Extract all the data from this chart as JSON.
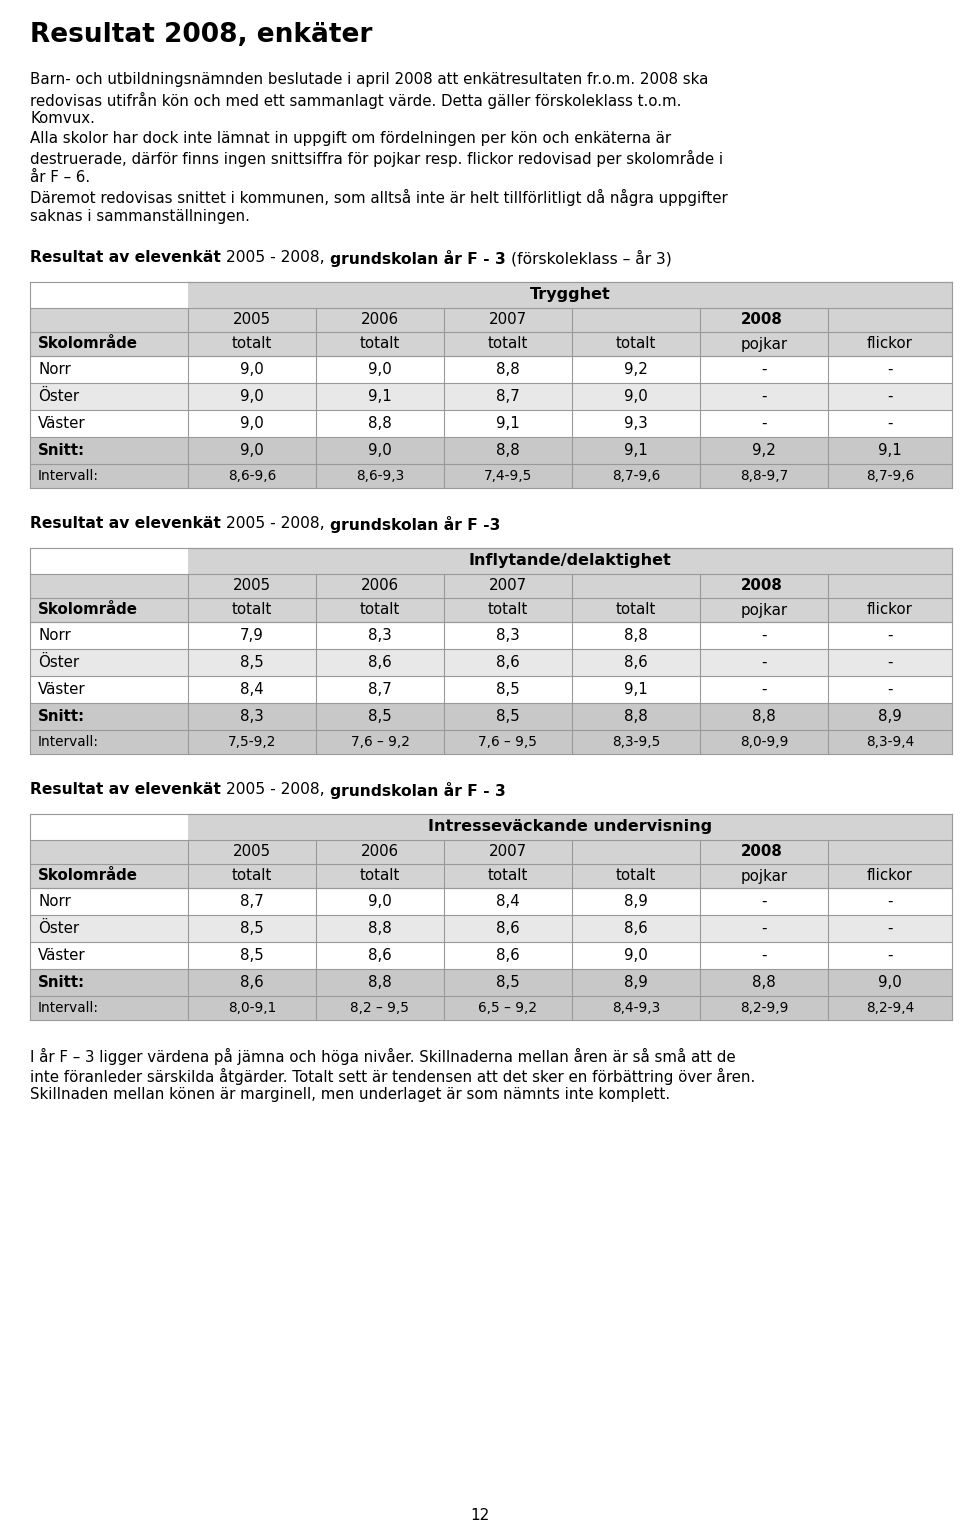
{
  "title": "Resultat 2008, enkäter",
  "bg_color": "#ffffff",
  "text_color": "#000000",
  "table_header_bg": "#d3d3d3",
  "table_row_bg_alt": "#e8e8e8",
  "table_row_bg_white": "#ffffff",
  "snitt_bg": "#c8c8c8",
  "intro_lines": [
    "Barn- och utbildningsnämnden beslutade i april 2008 att enkätresultaten fr.o.m. 2008 ska",
    "redovisas utifrån kön och med ett sammanlagt värde. Detta gäller förskoleklass t.o.m.",
    "Komvux.",
    "Alla skolor har dock inte lämnat in uppgift om fördelningen per kön och enkäterna är",
    "destruerade, därför finns ingen snittsiffra för pojkar resp. flickor redovisad per skolområde i",
    "år F – 6.",
    "Däremot redovisas snittet i kommunen, som alltså inte är helt tillförlitligt då några uppgifter",
    "saknas i sammanställningen."
  ],
  "section1_parts": [
    [
      "Resultat av elevenkät ",
      true
    ],
    [
      "2005 - 2008, ",
      false
    ],
    [
      "grundskolan år F - 3 ",
      true
    ],
    [
      "(förskoleklass – år 3)",
      false
    ]
  ],
  "section2_parts": [
    [
      "Resultat av elevenkät ",
      true
    ],
    [
      "2005 - 2008, ",
      false
    ],
    [
      "grundskolan år F -3",
      true
    ]
  ],
  "section3_parts": [
    [
      "Resultat av elevenkät ",
      true
    ],
    [
      "2005 - 2008, ",
      false
    ],
    [
      "grundskolan år F - 3",
      true
    ]
  ],
  "footer_lines": [
    "I år F – 3 ligger värdena på jämna och höga nivåer. Skillnaderna mellan åren är så små att de",
    "inte föranleder särskilda åtgärder. Totalt sett är tendensen att det sker en förbättring över åren.",
    "Skillnaden mellan könen är marginell, men underlaget är som nämnts inte komplett."
  ],
  "footer_page": "12",
  "table1_header": "Trygghet",
  "table2_header": "Inflytande/delaktighet",
  "table3_header": "Intresseväckande undervisning",
  "table1_rows": [
    [
      "Norr",
      "9,0",
      "9,0",
      "8,8",
      "9,2",
      "-",
      "-"
    ],
    [
      "Öster",
      "9,0",
      "9,1",
      "8,7",
      "9,0",
      "-",
      "-"
    ],
    [
      "Väster",
      "9,0",
      "8,8",
      "9,1",
      "9,3",
      "-",
      "-"
    ]
  ],
  "table1_snitt": [
    "Snitt:",
    "9,0",
    "9,0",
    "8,8",
    "9,1",
    "9,2",
    "9,1"
  ],
  "table1_intervall": [
    "Intervall:",
    "8,6-9,6",
    "8,6-9,3",
    "7,4-9,5",
    "8,7-9,6",
    "8,8-9,7",
    "8,7-9,6"
  ],
  "table2_rows": [
    [
      "Norr",
      "7,9",
      "8,3",
      "8,3",
      "8,8",
      "-",
      "-"
    ],
    [
      "Öster",
      "8,5",
      "8,6",
      "8,6",
      "8,6",
      "-",
      "-"
    ],
    [
      "Väster",
      "8,4",
      "8,7",
      "8,5",
      "9,1",
      "-",
      "-"
    ]
  ],
  "table2_snitt": [
    "Snitt:",
    "8,3",
    "8,5",
    "8,5",
    "8,8",
    "8,8",
    "8,9"
  ],
  "table2_intervall": [
    "Intervall:",
    "7,5-9,2",
    "7,6 – 9,2",
    "7,6 – 9,5",
    "8,3-9,5",
    "8,0-9,9",
    "8,3-9,4"
  ],
  "table3_rows": [
    [
      "Norr",
      "8,7",
      "9,0",
      "8,4",
      "8,9",
      "-",
      "-"
    ],
    [
      "Öster",
      "8,5",
      "8,8",
      "8,6",
      "8,6",
      "-",
      "-"
    ],
    [
      "Väster",
      "8,5",
      "8,6",
      "8,6",
      "9,0",
      "-",
      "-"
    ]
  ],
  "table3_snitt": [
    "Snitt:",
    "8,6",
    "8,8",
    "8,5",
    "8,9",
    "8,8",
    "9,0"
  ],
  "table3_intervall": [
    "Intervall:",
    "8,0-9,1",
    "8,2 – 9,5",
    "6,5 – 9,2",
    "8,4-9,3",
    "8,2-9,9",
    "8,2-9,4"
  ]
}
